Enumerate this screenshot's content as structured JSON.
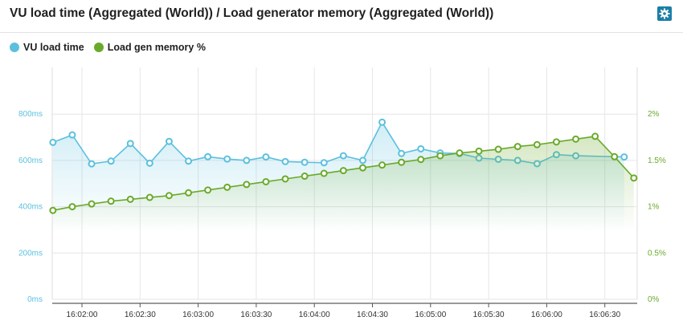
{
  "header": {
    "title": "VU load time (Aggregated (World)) / Load generator memory (Aggregated (World))",
    "settings_icon": "gear-icon"
  },
  "legend": [
    {
      "label": "VU load time",
      "color": "#5bc0de"
    },
    {
      "label": "Load gen memory %",
      "color": "#6aaa2a"
    }
  ],
  "chart_data": {
    "type": "line",
    "x_tick_labels": [
      "16:02:00",
      "16:02:30",
      "16:03:00",
      "16:03:30",
      "16:04:00",
      "16:04:30",
      "16:05:00",
      "16:05:30",
      "16:06:00",
      "16:06:30"
    ],
    "y_left": {
      "ticks": [
        "0ms",
        "200ms",
        "400ms",
        "600ms",
        "800ms"
      ],
      "range": [
        0,
        1000
      ],
      "color": "#5bc0de"
    },
    "y_right": {
      "ticks": [
        "0%",
        "0.5%",
        "1%",
        "1.5%",
        "2%"
      ],
      "range": [
        0,
        2.5
      ],
      "color": "#6aaa2a"
    },
    "series": [
      {
        "name": "VU load time",
        "unit": "ms",
        "x": [
          "16:01:45",
          "16:01:55",
          "16:02:05",
          "16:02:15",
          "16:02:25",
          "16:02:35",
          "16:02:45",
          "16:02:55",
          "16:03:05",
          "16:03:15",
          "16:03:25",
          "16:03:35",
          "16:03:45",
          "16:03:55",
          "16:04:05",
          "16:04:15",
          "16:04:25",
          "16:04:35",
          "16:04:45",
          "16:04:55",
          "16:05:05",
          "16:05:15",
          "16:05:25",
          "16:05:35",
          "16:05:45",
          "16:05:55",
          "16:06:05",
          "16:06:15",
          "16:06:40"
        ],
        "values": [
          678,
          710,
          585,
          597,
          673,
          588,
          682,
          597,
          616,
          606,
          600,
          615,
          595,
          592,
          590,
          620,
          600,
          765,
          630,
          650,
          632,
          630,
          610,
          605,
          600,
          586,
          625,
          620,
          615
        ]
      },
      {
        "name": "Load gen memory %",
        "unit": "%",
        "x": [
          "16:01:45",
          "16:01:55",
          "16:02:05",
          "16:02:15",
          "16:02:25",
          "16:02:35",
          "16:02:45",
          "16:02:55",
          "16:03:05",
          "16:03:15",
          "16:03:25",
          "16:03:35",
          "16:03:45",
          "16:03:55",
          "16:04:05",
          "16:04:15",
          "16:04:25",
          "16:04:35",
          "16:04:45",
          "16:04:55",
          "16:05:05",
          "16:05:15",
          "16:05:25",
          "16:05:35",
          "16:05:45",
          "16:05:55",
          "16:06:05",
          "16:06:15",
          "16:06:25",
          "16:06:35",
          "16:06:45"
        ],
        "values": [
          0.96,
          1.0,
          1.03,
          1.06,
          1.08,
          1.1,
          1.12,
          1.15,
          1.18,
          1.21,
          1.24,
          1.27,
          1.3,
          1.33,
          1.36,
          1.39,
          1.42,
          1.45,
          1.48,
          1.51,
          1.55,
          1.58,
          1.6,
          1.62,
          1.65,
          1.67,
          1.7,
          1.73,
          1.76,
          1.54,
          1.31
        ]
      }
    ],
    "grid": true,
    "legend_position": "top-left"
  }
}
